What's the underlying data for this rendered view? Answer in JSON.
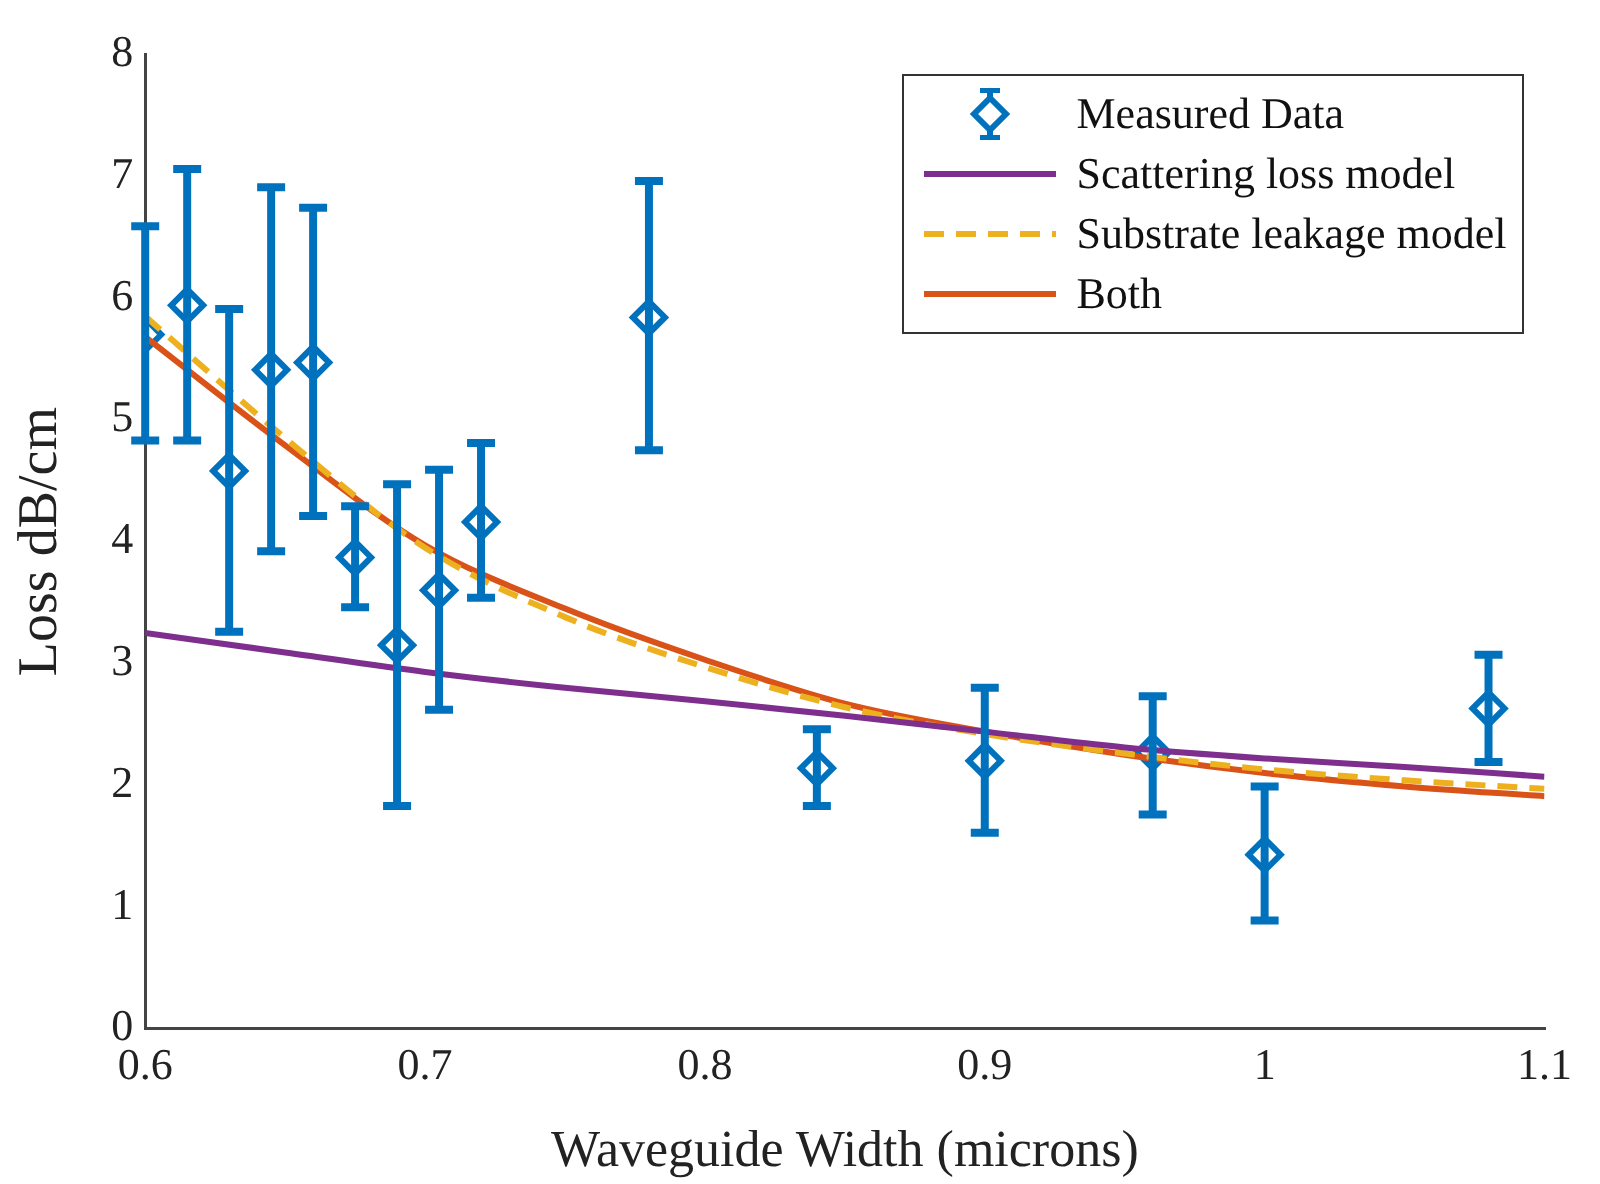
{
  "chart_data": {
    "type": "line",
    "xlabel": "Waveguide Width (microns)",
    "ylabel": "Loss dB/cm",
    "xlim": [
      0.6,
      1.1
    ],
    "xticks": [
      0.6,
      0.7,
      0.8,
      0.9,
      1,
      1.1
    ],
    "ylim": [
      0,
      8
    ],
    "yticks": [
      0,
      1,
      2,
      3,
      4,
      5,
      6,
      7,
      8
    ],
    "grid": false,
    "legend": "top right",
    "series": [
      {
        "name": "Measured Data",
        "type": "scatter",
        "marker": "diamond",
        "color": "#0072bd",
        "x": [
          0.6,
          0.615,
          0.63,
          0.645,
          0.66,
          0.675,
          0.69,
          0.705,
          0.72,
          0.78,
          0.84,
          0.9,
          0.96,
          1.0,
          1.08
        ],
        "values": [
          5.7,
          5.94,
          4.58,
          5.41,
          5.47,
          3.87,
          3.15,
          3.6,
          4.16,
          5.84,
          2.14,
          2.2,
          2.27,
          1.43,
          2.63
        ],
        "errors": [
          [
            4.83,
            6.59
          ],
          [
            4.83,
            7.06
          ],
          [
            3.26,
            5.91
          ],
          [
            3.92,
            6.91
          ],
          [
            4.21,
            6.74
          ],
          [
            3.46,
            4.29
          ],
          [
            1.83,
            4.47
          ],
          [
            2.62,
            4.59
          ],
          [
            3.54,
            4.81
          ],
          [
            4.75,
            6.96
          ],
          [
            1.83,
            2.46
          ],
          [
            1.61,
            2.8
          ],
          [
            1.76,
            2.73
          ],
          [
            0.89,
            1.99
          ],
          [
            2.19,
            3.07
          ]
        ]
      },
      {
        "name": "Scattering loss model",
        "marker": "none",
        "line_style": "solid",
        "color": "#7e2f8e",
        "x": [
          0.6,
          0.65,
          0.7,
          0.75,
          0.8,
          0.85,
          0.9,
          0.95,
          1.0,
          1.05,
          1.1
        ],
        "values": [
          3.25,
          3.09,
          2.93,
          2.8,
          2.69,
          2.57,
          2.44,
          2.31,
          2.22,
          2.15,
          2.07
        ]
      },
      {
        "name": "Substrate leakage model",
        "marker": "none",
        "line_style": "dashed",
        "color": "#edb120",
        "x": [
          0.6,
          0.65,
          0.7,
          0.75,
          0.8,
          0.85,
          0.9,
          0.95,
          1.0,
          1.05,
          1.1
        ],
        "values": [
          5.85,
          4.85,
          3.95,
          3.38,
          2.97,
          2.64,
          2.42,
          2.26,
          2.13,
          2.04,
          1.97
        ]
      },
      {
        "name": "Both",
        "marker": "none",
        "line_style": "solid",
        "color": "#d95319",
        "x": [
          0.6,
          0.65,
          0.7,
          0.75,
          0.8,
          0.85,
          0.9,
          0.95,
          1.0,
          1.05,
          1.1
        ],
        "values": [
          5.68,
          4.79,
          3.97,
          3.45,
          3.03,
          2.67,
          2.44,
          2.25,
          2.1,
          1.99,
          1.91
        ]
      }
    ]
  }
}
